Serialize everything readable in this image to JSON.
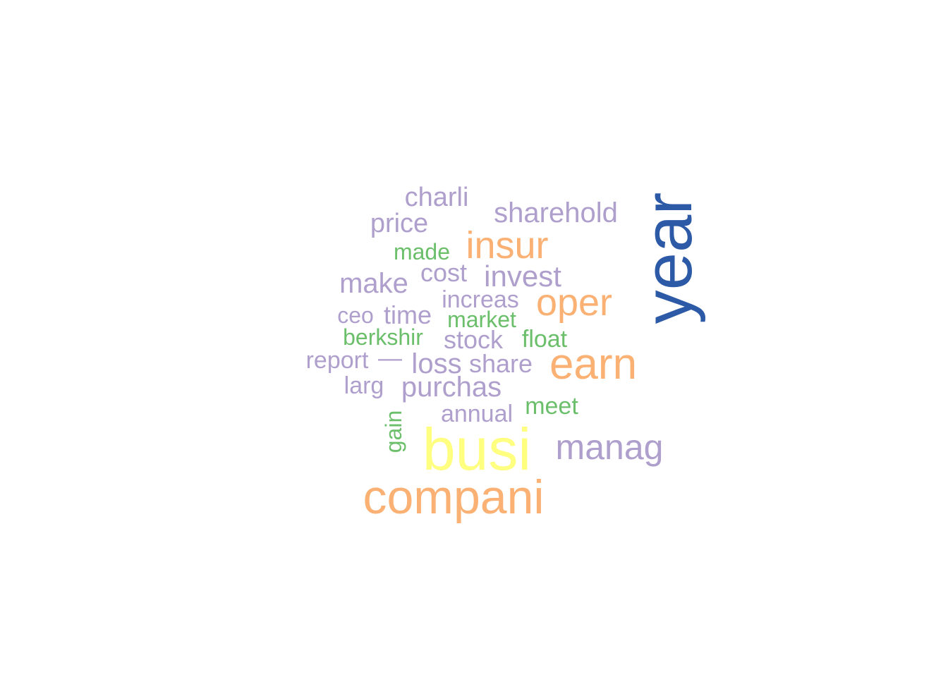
{
  "palette": {
    "dark_blue": "#2c5aa6",
    "yellow": "#ffff80",
    "orange": "#fab173",
    "purple": "#ae9fcc",
    "green": "#6bbf6a"
  },
  "words": [
    {
      "text": "year",
      "tier": "dark_blue",
      "orientation": "vertical"
    },
    {
      "text": "busi",
      "tier": "yellow",
      "orientation": "horizontal"
    },
    {
      "text": "compani",
      "tier": "orange",
      "orientation": "horizontal"
    },
    {
      "text": "earn",
      "tier": "orange",
      "orientation": "horizontal"
    },
    {
      "text": "oper",
      "tier": "orange",
      "orientation": "horizontal"
    },
    {
      "text": "insur",
      "tier": "orange",
      "orientation": "horizontal"
    },
    {
      "text": "manag",
      "tier": "purple",
      "orientation": "horizontal"
    },
    {
      "text": "invest",
      "tier": "purple",
      "orientation": "horizontal"
    },
    {
      "text": "sharehold",
      "tier": "purple",
      "orientation": "horizontal"
    },
    {
      "text": "charli",
      "tier": "purple",
      "orientation": "horizontal"
    },
    {
      "text": "price",
      "tier": "purple",
      "orientation": "horizontal"
    },
    {
      "text": "make",
      "tier": "purple",
      "orientation": "horizontal"
    },
    {
      "text": "cost",
      "tier": "purple",
      "orientation": "horizontal"
    },
    {
      "text": "increas",
      "tier": "purple",
      "orientation": "horizontal"
    },
    {
      "text": "ceo",
      "tier": "purple",
      "orientation": "horizontal"
    },
    {
      "text": "time",
      "tier": "purple",
      "orientation": "horizontal"
    },
    {
      "text": "stock",
      "tier": "purple",
      "orientation": "horizontal"
    },
    {
      "text": "report",
      "tier": "purple",
      "orientation": "horizontal"
    },
    {
      "text": "—",
      "tier": "purple",
      "orientation": "horizontal"
    },
    {
      "text": "loss",
      "tier": "purple",
      "orientation": "horizontal"
    },
    {
      "text": "share",
      "tier": "purple",
      "orientation": "horizontal"
    },
    {
      "text": "larg",
      "tier": "purple",
      "orientation": "horizontal"
    },
    {
      "text": "purchas",
      "tier": "purple",
      "orientation": "horizontal"
    },
    {
      "text": "annual",
      "tier": "purple",
      "orientation": "horizontal"
    },
    {
      "text": "made",
      "tier": "green",
      "orientation": "horizontal"
    },
    {
      "text": "market",
      "tier": "green",
      "orientation": "horizontal"
    },
    {
      "text": "berkshir",
      "tier": "green",
      "orientation": "horizontal"
    },
    {
      "text": "float",
      "tier": "green",
      "orientation": "horizontal"
    },
    {
      "text": "meet",
      "tier": "green",
      "orientation": "horizontal"
    },
    {
      "text": "gain",
      "tier": "green",
      "orientation": "vertical"
    }
  ]
}
